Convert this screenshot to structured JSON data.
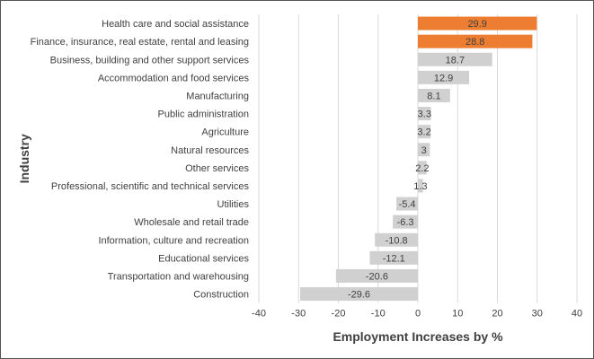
{
  "chart_data": {
    "type": "bar",
    "orientation": "horizontal",
    "categories": [
      "Health care and social assistance",
      "Finance, insurance, real estate, rental and leasing",
      "Business, building and other support services",
      "Accommodation and food services",
      "Manufacturing",
      "Public administration",
      "Agriculture",
      "Natural resources",
      "Other services",
      "Professional, scientific and technical services",
      "Utilities",
      "Wholesale and retail trade",
      "Information, culture and recreation",
      "Educational services",
      "Transportation and warehousing",
      "Construction"
    ],
    "values": [
      29.9,
      28.8,
      18.7,
      12.9,
      8.1,
      3.3,
      3.2,
      3,
      2.2,
      1.3,
      -5.4,
      -6.3,
      -10.8,
      -12.1,
      -20.6,
      -29.6
    ],
    "value_labels": [
      "29.9",
      "28.8",
      "18.7",
      "12.9",
      "8.1",
      "3.3",
      "3.2",
      "3",
      "2.2",
      "1.3",
      "-5.4",
      "-6.3",
      "-10.8",
      "-12.1",
      "-20.6",
      "-29.6"
    ],
    "highlighted": [
      true,
      true,
      false,
      false,
      false,
      false,
      false,
      false,
      false,
      false,
      false,
      false,
      false,
      false,
      false,
      false
    ],
    "title": "",
    "xlabel": "Employment Increases by %",
    "ylabel": "Industry",
    "xlim": [
      -40,
      40
    ],
    "xticks": [
      -40,
      -30,
      -20,
      -10,
      0,
      10,
      20,
      30,
      40
    ],
    "xtick_labels": [
      "-40",
      "-30",
      "-20",
      "-10",
      "0",
      "10",
      "20",
      "30",
      "40"
    ],
    "grid": "vertical",
    "legend": "none",
    "colors": {
      "highlight": "#ed7d31",
      "default": "#d0d0d0",
      "grid": "#d9d9d9",
      "text": "#404040"
    }
  }
}
